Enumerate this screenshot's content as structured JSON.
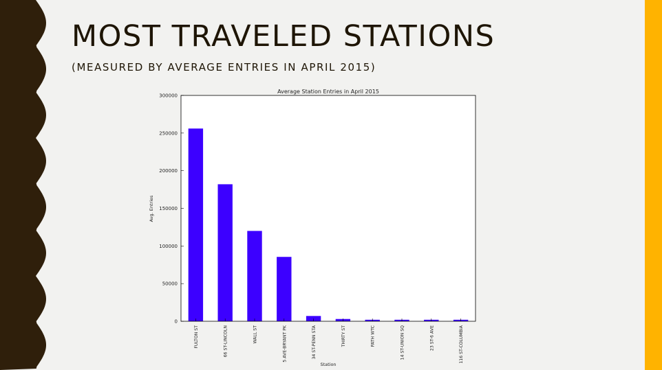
{
  "slide": {
    "title": "MOST TRAVELED STATIONS",
    "subtitle": "(MEASURED BY AVERAGE ENTRIES IN APRIL 2015)",
    "colors": {
      "border": "#2f1f0b",
      "accent": "#ffb300",
      "background": "#f2f2f0",
      "title": "#1e1505"
    }
  },
  "chart_data": {
    "type": "bar",
    "title": "Average Station Entries in April 2015",
    "xlabel": "Station",
    "ylabel": "Avg. Entries",
    "ylim": [
      0,
      300000
    ],
    "yticks": [
      0,
      50000,
      100000,
      150000,
      200000,
      250000,
      300000
    ],
    "categories": [
      "FULTON ST",
      "66 ST-LINCOLN",
      "WALL ST",
      "5 AVE-BRYANT PK",
      "34 ST-PENN STA",
      "THIRTY ST",
      "PATH WTC",
      "14 ST-UNION SQ",
      "23 ST-6 AVE",
      "116 ST-COLUMBIA"
    ],
    "values": [
      256000,
      182000,
      120000,
      85500,
      7000,
      3000,
      2000,
      2000,
      2000,
      2000
    ],
    "bar_color": "#3c00ff",
    "grid": false,
    "legend": "none"
  }
}
